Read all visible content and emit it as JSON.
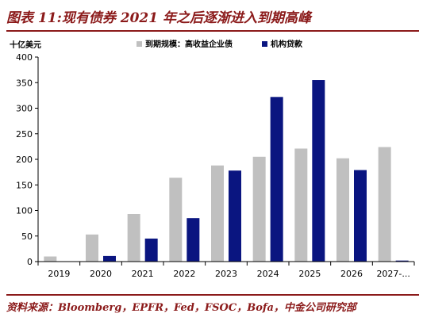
{
  "header": {
    "title": "图表 11:现有债券 2021 年之后逐渐进入到期高峰"
  },
  "footer": {
    "source": "资料来源：Bloomberg，EPFR，Fed，FSOC，Bofa，中金公司研究部"
  },
  "chart_data": {
    "type": "bar",
    "unit_label": "十亿美元",
    "categories": [
      "2019",
      "2020",
      "2021",
      "2022",
      "2023",
      "2024",
      "2025",
      "2026",
      "2027-..."
    ],
    "series": [
      {
        "name": "到期规模：高收益企业债",
        "color": "#c0c0c0",
        "values": [
          10,
          53,
          93,
          164,
          188,
          205,
          221,
          202,
          224
        ]
      },
      {
        "name": "机构贷款",
        "color": "#0a1580",
        "values": [
          0,
          11,
          45,
          85,
          178,
          322,
          355,
          179,
          2
        ]
      }
    ],
    "ylim": [
      0,
      400
    ],
    "yticks": [
      0,
      50,
      100,
      150,
      200,
      250,
      300,
      350,
      400
    ],
    "legend_position": "top",
    "grid": false
  }
}
